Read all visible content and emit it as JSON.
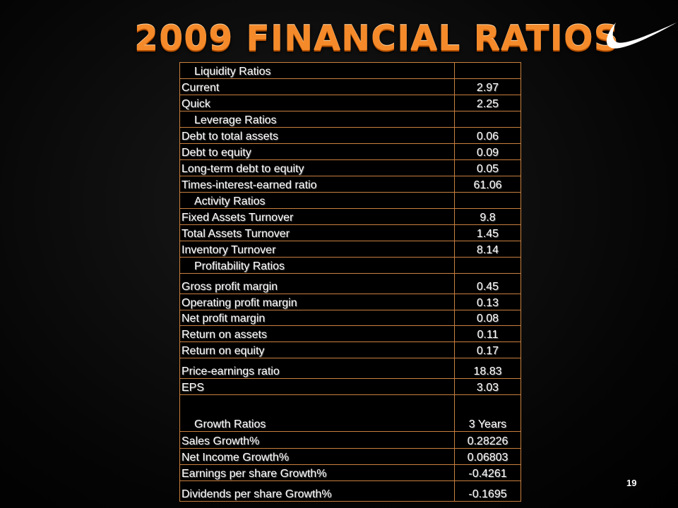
{
  "slide": {
    "title": "2009 FINANCIAL RATIOS",
    "page_number": "19",
    "logo_icon": "swoosh-logo-icon",
    "accent_color": "#f58a2a",
    "border_color": "#c9803f"
  },
  "ratios_table": {
    "rows": [
      {
        "label": "Liquidity Ratios",
        "value": "",
        "heading": true,
        "h": 23
      },
      {
        "label": "Current",
        "value": "2.97",
        "h": 23
      },
      {
        "label": "Quick",
        "value": "2.25",
        "h": 23
      },
      {
        "label": "Leverage Ratios",
        "value": "",
        "heading": true,
        "h": 23
      },
      {
        "label": "Debt to total assets",
        "value": "0.06",
        "h": 23
      },
      {
        "label": "Debt to equity",
        "value": "0.09",
        "h": 23
      },
      {
        "label": "Long-term debt to equity",
        "value": "0.05",
        "h": 23
      },
      {
        "label": "Times-interest-earned ratio",
        "value": "61.06",
        "h": 23
      },
      {
        "label": "Activity Ratios",
        "value": "",
        "heading": true,
        "h": 23
      },
      {
        "label": "Fixed Assets Turnover",
        "value": "9.8",
        "h": 23
      },
      {
        "label": "Total Assets Turnover",
        "value": "1.45",
        "h": 23
      },
      {
        "label": "Inventory Turnover",
        "value": "8.14",
        "h": 23
      },
      {
        "label": "Profitability Ratios",
        "value": "",
        "heading": true,
        "h": 23
      },
      {
        "label": "Gross profit margin",
        "value": "0.45",
        "h": 29
      },
      {
        "label": "Operating profit margin",
        "value": "0.13",
        "h": 23
      },
      {
        "label": "Net profit margin",
        "value": "0.08",
        "h": 22
      },
      {
        "label": "Return on assets",
        "value": "0.11",
        "h": 23
      },
      {
        "label": "Return on equity",
        "value": "0.17",
        "h": 23
      },
      {
        "label": "Price-earnings ratio",
        "value": "18.83",
        "h": 29
      },
      {
        "label": "EPS",
        "value": "3.03",
        "h": 23
      },
      {
        "label": "Growth Ratios",
        "value": "3 Years",
        "heading": true,
        "h": 52
      },
      {
        "label": "Sales Growth%",
        "value": "0.28226",
        "h": 24
      },
      {
        "label": "Net Income Growth%",
        "value": "0.06803",
        "h": 23
      },
      {
        "label": "Earnings per share Growth%",
        "value": "-0.4261",
        "h": 23
      },
      {
        "label": "Dividends per share Growth%",
        "value": "-0.1695",
        "h": 29
      }
    ]
  }
}
